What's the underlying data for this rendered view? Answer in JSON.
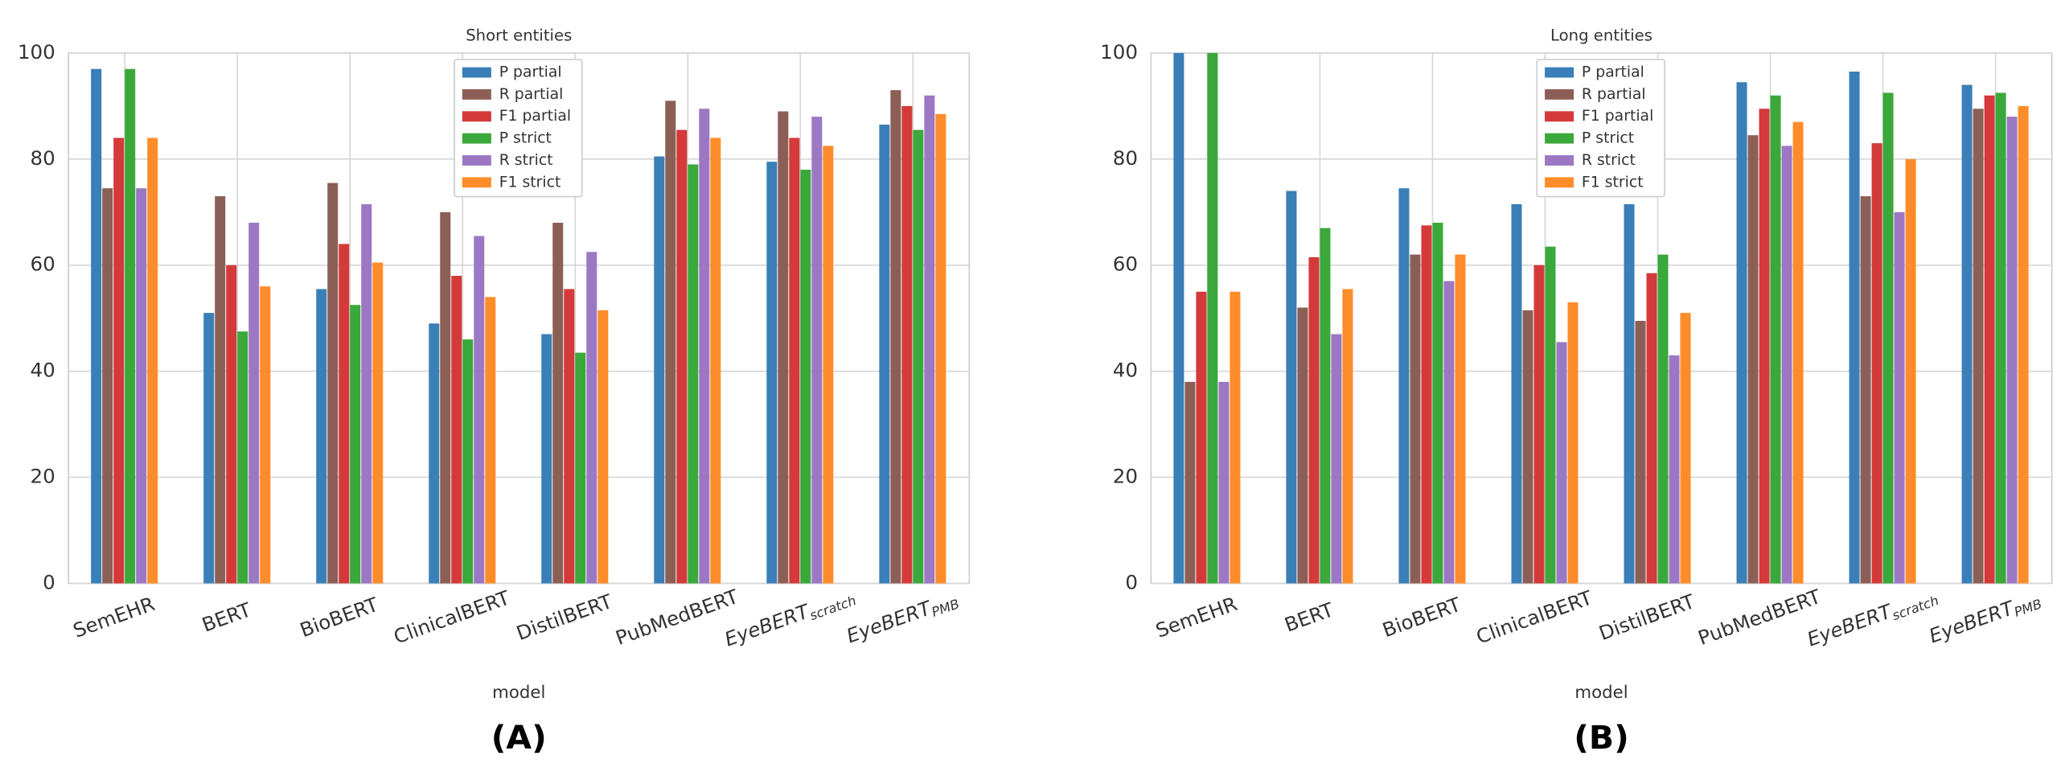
{
  "chart_data": [
    {
      "type": "bar",
      "title": "Short entities",
      "xlabel": "model",
      "panel_label": "(A)",
      "categories": [
        "SemEHR",
        "BERT",
        "BioBERT",
        "ClinicalBERT",
        "DistilBERT",
        "PubMedBERT",
        {
          "text": "EyeBERT",
          "sub": "scratch"
        },
        {
          "text": "EyeBERT",
          "sub": "PMB"
        }
      ],
      "series": [
        {
          "name": "P partial",
          "color": "#3a7fb8",
          "values": [
            97,
            51,
            55.5,
            49,
            47,
            80.5,
            79.5,
            86.5
          ]
        },
        {
          "name": "R partial",
          "color": "#8c5f56",
          "values": [
            74.5,
            73,
            75.5,
            70,
            68,
            91,
            89,
            93
          ]
        },
        {
          "name": "F1 partial",
          "color": "#d43a3a",
          "values": [
            84,
            60,
            64,
            58,
            55.5,
            85.5,
            84,
            90
          ]
        },
        {
          "name": "P strict",
          "color": "#3aa83a",
          "values": [
            97,
            47.5,
            52.5,
            46,
            43.5,
            79,
            78,
            85.5
          ]
        },
        {
          "name": "R strict",
          "color": "#9c78c4",
          "values": [
            74.5,
            68,
            71.5,
            65.5,
            62.5,
            89.5,
            88,
            92
          ]
        },
        {
          "name": "F1 strict",
          "color": "#ff8c2a",
          "values": [
            84,
            56,
            60.5,
            54,
            51.5,
            84,
            82.5,
            88.5
          ]
        }
      ],
      "ylim": [
        0,
        100
      ],
      "yticks": [
        0,
        20,
        40,
        60,
        80,
        100
      ],
      "grid": true,
      "legend": "upper center"
    },
    {
      "type": "bar",
      "title": "Long entities",
      "xlabel": "model",
      "panel_label": "(B)",
      "categories": [
        "SemEHR",
        "BERT",
        "BioBERT",
        "ClinicalBERT",
        "DistilBERT",
        "PubMedBERT",
        {
          "text": "EyeBERT",
          "sub": "scratch"
        },
        {
          "text": "EyeBERT",
          "sub": "PMB"
        }
      ],
      "series": [
        {
          "name": "P partial",
          "color": "#3a7fb8",
          "values": [
            100,
            74,
            74.5,
            71.5,
            71.5,
            94.5,
            96.5,
            94
          ]
        },
        {
          "name": "R partial",
          "color": "#8c5f56",
          "values": [
            38,
            52,
            62,
            51.5,
            49.5,
            84.5,
            73,
            89.5
          ]
        },
        {
          "name": "F1 partial",
          "color": "#d43a3a",
          "values": [
            55,
            61.5,
            67.5,
            60,
            58.5,
            89.5,
            83,
            92
          ]
        },
        {
          "name": "P strict",
          "color": "#3aa83a",
          "values": [
            100,
            67,
            68,
            63.5,
            62,
            92,
            92.5,
            92.5
          ]
        },
        {
          "name": "R strict",
          "color": "#9c78c4",
          "values": [
            38,
            47,
            57,
            45.5,
            43,
            82.5,
            70,
            88
          ]
        },
        {
          "name": "F1 strict",
          "color": "#ff8c2a",
          "values": [
            55,
            55.5,
            62,
            53,
            51,
            87,
            80,
            90
          ]
        }
      ],
      "ylim": [
        0,
        100
      ],
      "yticks": [
        0,
        20,
        40,
        60,
        80,
        100
      ],
      "grid": true,
      "legend": "upper center"
    }
  ]
}
